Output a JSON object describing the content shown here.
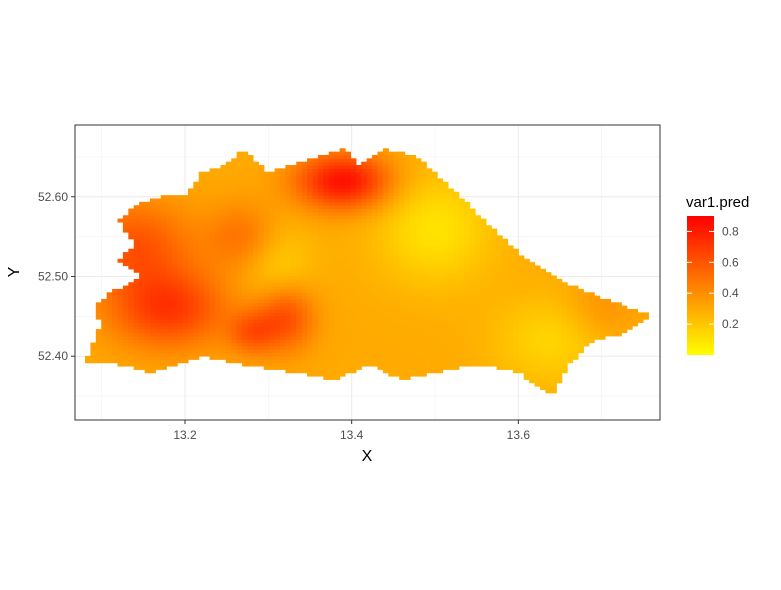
{
  "chart_data": {
    "type": "heatmap",
    "title": "",
    "xlabel": "X",
    "ylabel": "Y",
    "xlim": [
      13.068,
      13.77
    ],
    "ylim": [
      52.32,
      52.69
    ],
    "x_ticks": [
      {
        "value": 13.2,
        "label": "13.2"
      },
      {
        "value": 13.4,
        "label": "13.4"
      },
      {
        "value": 13.6,
        "label": "13.6"
      }
    ],
    "y_ticks": [
      {
        "value": 52.4,
        "label": "52.40"
      },
      {
        "value": 52.5,
        "label": "52.50"
      },
      {
        "value": 52.6,
        "label": "52.60"
      }
    ],
    "grid": true,
    "panel_border": true,
    "legend": {
      "title": "var1.pred",
      "placement": "right",
      "range": [
        0.0,
        0.9
      ],
      "breaks": [
        {
          "value": 0.2,
          "label": "0.2"
        },
        {
          "value": 0.4,
          "label": "0.4"
        },
        {
          "value": 0.6,
          "label": "0.6"
        },
        {
          "value": 0.8,
          "label": "0.8"
        }
      ],
      "color_low": "#ffff00",
      "color_high": "#ff0000"
    },
    "boundary": [
      [
        13.08,
        52.39
      ],
      [
        13.09,
        52.42
      ],
      [
        13.1,
        52.44
      ],
      [
        13.09,
        52.46
      ],
      [
        13.11,
        52.48
      ],
      [
        13.15,
        52.5
      ],
      [
        13.12,
        52.52
      ],
      [
        13.14,
        52.54
      ],
      [
        13.12,
        52.57
      ],
      [
        13.14,
        52.59
      ],
      [
        13.17,
        52.6
      ],
      [
        13.2,
        52.6
      ],
      [
        13.22,
        52.63
      ],
      [
        13.25,
        52.64
      ],
      [
        13.27,
        52.66
      ],
      [
        13.3,
        52.63
      ],
      [
        13.33,
        52.64
      ],
      [
        13.36,
        52.65
      ],
      [
        13.39,
        52.66
      ],
      [
        13.41,
        52.64
      ],
      [
        13.44,
        52.66
      ],
      [
        13.48,
        52.65
      ],
      [
        13.5,
        52.63
      ],
      [
        13.53,
        52.6
      ],
      [
        13.57,
        52.56
      ],
      [
        13.61,
        52.52
      ],
      [
        13.66,
        52.49
      ],
      [
        13.71,
        52.47
      ],
      [
        13.76,
        52.45
      ],
      [
        13.73,
        52.43
      ],
      [
        13.69,
        52.42
      ],
      [
        13.66,
        52.39
      ],
      [
        13.64,
        52.35
      ],
      [
        13.6,
        52.38
      ],
      [
        13.55,
        52.39
      ],
      [
        13.5,
        52.38
      ],
      [
        13.46,
        52.37
      ],
      [
        13.42,
        52.39
      ],
      [
        13.38,
        52.37
      ],
      [
        13.33,
        52.38
      ],
      [
        13.27,
        52.39
      ],
      [
        13.22,
        52.4
      ],
      [
        13.16,
        52.38
      ],
      [
        13.12,
        52.39
      ]
    ],
    "field_base": 0.3,
    "hotspots": [
      {
        "x": 13.18,
        "y": 52.46,
        "amp": 0.4,
        "sx": 0.05,
        "sy": 0.035
      },
      {
        "x": 13.14,
        "y": 52.54,
        "amp": 0.3,
        "sx": 0.05,
        "sy": 0.04
      },
      {
        "x": 13.32,
        "y": 52.45,
        "amp": 0.35,
        "sx": 0.025,
        "sy": 0.03
      },
      {
        "x": 13.28,
        "y": 52.43,
        "amp": 0.25,
        "sx": 0.02,
        "sy": 0.02
      },
      {
        "x": 13.39,
        "y": 52.62,
        "amp": 0.55,
        "sx": 0.04,
        "sy": 0.025
      },
      {
        "x": 13.27,
        "y": 52.55,
        "amp": 0.2,
        "sx": 0.03,
        "sy": 0.03
      },
      {
        "x": 13.5,
        "y": 52.56,
        "amp": -0.2,
        "sx": 0.05,
        "sy": 0.05
      },
      {
        "x": 13.64,
        "y": 52.42,
        "amp": -0.15,
        "sx": 0.05,
        "sy": 0.04
      },
      {
        "x": 13.31,
        "y": 52.51,
        "amp": -0.15,
        "sx": 0.03,
        "sy": 0.04
      },
      {
        "x": 13.7,
        "y": 52.46,
        "amp": 0.1,
        "sx": 0.03,
        "sy": 0.03
      }
    ]
  }
}
